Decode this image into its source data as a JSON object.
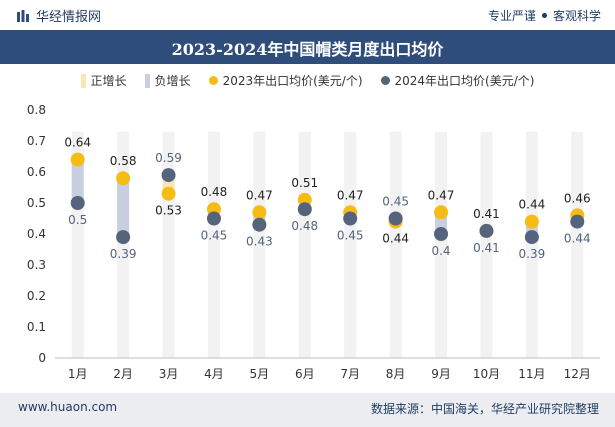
{
  "header": {
    "brand": "华经情报网",
    "tagline_left": "专业严谨",
    "tagline_right": "客观科学"
  },
  "chart_data": {
    "type": "scatter",
    "title": "2023-2024年中国帽类月度出口均价",
    "categories": [
      "1月",
      "2月",
      "3月",
      "4月",
      "5月",
      "6月",
      "7月",
      "8月",
      "9月",
      "10月",
      "11月",
      "12月"
    ],
    "series": [
      {
        "name": "2023年出口均价(美元/个)",
        "values": [
          0.64,
          0.58,
          0.53,
          0.48,
          0.47,
          0.51,
          0.47,
          0.44,
          0.47,
          0.41,
          0.44,
          0.46
        ]
      },
      {
        "name": "2024年出口均价(美元/个)",
        "values": [
          0.5,
          0.39,
          0.59,
          0.45,
          0.43,
          0.48,
          0.45,
          0.45,
          0.4,
          0.41,
          0.39,
          0.44
        ]
      }
    ],
    "legend": [
      "正增长",
      "负增长",
      "2023年出口均价(美元/个)",
      "2024年出口均价(美元/个)"
    ],
    "ylim": [
      0,
      0.8
    ],
    "yticks": [
      0,
      0.1,
      0.2,
      0.3,
      0.4,
      0.5,
      0.6,
      0.7,
      0.8
    ],
    "xlabel": "",
    "ylabel": "",
    "legend_position": "top",
    "grid": false
  },
  "colors": {
    "positive": "#f6e7b5",
    "negative": "#c8cfe0",
    "y2023": "#f5bd14",
    "y2024": "#55637d",
    "header_bar": "#2f4d7a",
    "footer_bg": "#ebedf1",
    "band_bg": "#f2f2f2"
  },
  "footer": {
    "website": "www.huaon.com",
    "source": "数据来源：中国海关，华经产业研究院整理"
  }
}
